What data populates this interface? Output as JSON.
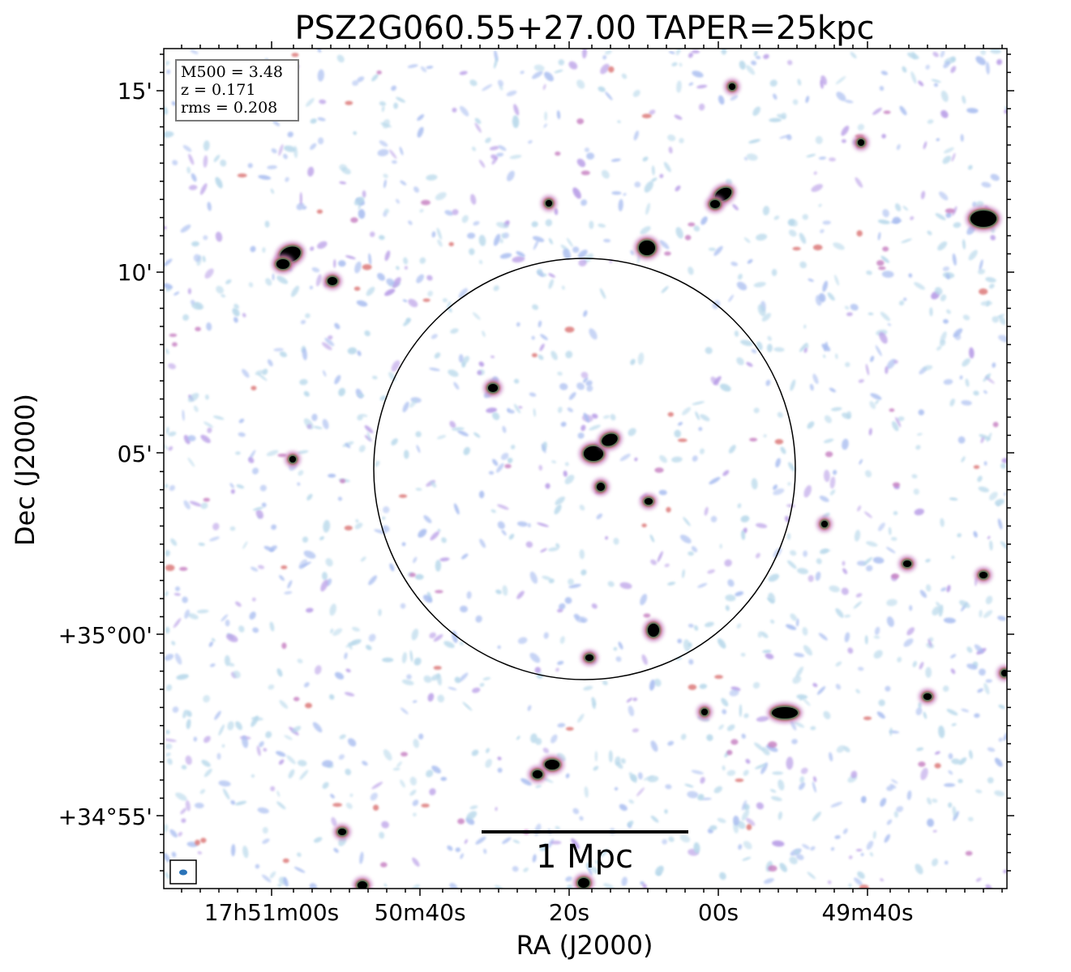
{
  "title": "PSZ2G060.55+27.00 TAPER=25kpc",
  "info_box": {
    "lines": [
      "M500 = 3.48",
      "z = 0.171",
      "rms = 0.208"
    ]
  },
  "x_axis": {
    "label": "RA (J2000)",
    "ticks": [
      "17h51m00s",
      "50m40s",
      "20s",
      "00s",
      "49m40s"
    ]
  },
  "y_axis": {
    "label": "Dec (J2000)",
    "ticks": [
      "15'",
      "10'",
      "05'",
      "+35°00'",
      "+34°55'"
    ]
  },
  "scale_bar": {
    "label": "1 Mpc"
  },
  "colors": {
    "noise_light": "#b7d8ea",
    "noise_mid": "#a9bdf0",
    "noise_purple": "#b79be6",
    "source_pink": "#c47bbf",
    "source_red": "#d97070",
    "source_green": "#2f6f46",
    "source_core": "#000000",
    "beam": "#2a73b8"
  }
}
